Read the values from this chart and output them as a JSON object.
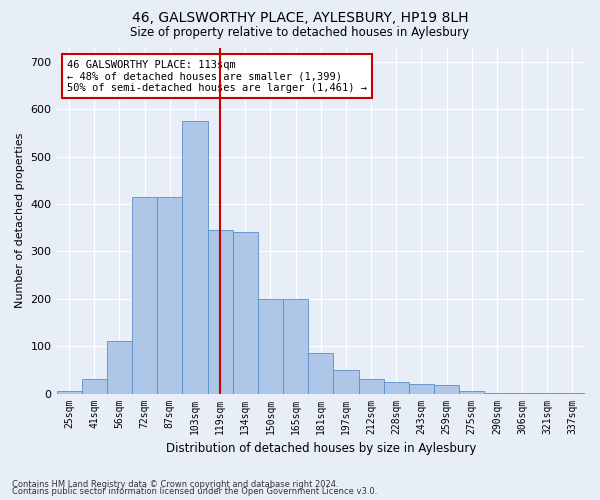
{
  "title1": "46, GALSWORTHY PLACE, AYLESBURY, HP19 8LH",
  "title2": "Size of property relative to detached houses in Aylesbury",
  "xlabel": "Distribution of detached houses by size in Aylesbury",
  "ylabel": "Number of detached properties",
  "categories": [
    "25sqm",
    "41sqm",
    "56sqm",
    "72sqm",
    "87sqm",
    "103sqm",
    "119sqm",
    "134sqm",
    "150sqm",
    "165sqm",
    "181sqm",
    "197sqm",
    "212sqm",
    "228sqm",
    "243sqm",
    "259sqm",
    "275sqm",
    "290sqm",
    "306sqm",
    "321sqm",
    "337sqm"
  ],
  "values": [
    5,
    30,
    110,
    415,
    415,
    575,
    345,
    340,
    200,
    200,
    85,
    50,
    30,
    25,
    20,
    18,
    5,
    2,
    1,
    2,
    2
  ],
  "bar_color": "#aec6e8",
  "bar_edge_color": "#5b8ec4",
  "vline_color": "#cc0000",
  "vline_x": 6,
  "annotation_text": "46 GALSWORTHY PLACE: 113sqm\n← 48% of detached houses are smaller (1,399)\n50% of semi-detached houses are larger (1,461) →",
  "annotation_box_color": "#ffffff",
  "annotation_box_edge": "#cc0000",
  "footer1": "Contains HM Land Registry data © Crown copyright and database right 2024.",
  "footer2": "Contains public sector information licensed under the Open Government Licence v3.0.",
  "ylim": [
    0,
    730
  ],
  "yticks": [
    0,
    100,
    200,
    300,
    400,
    500,
    600,
    700
  ],
  "bg_color": "#e8eef8",
  "grid_color": "#ffffff"
}
